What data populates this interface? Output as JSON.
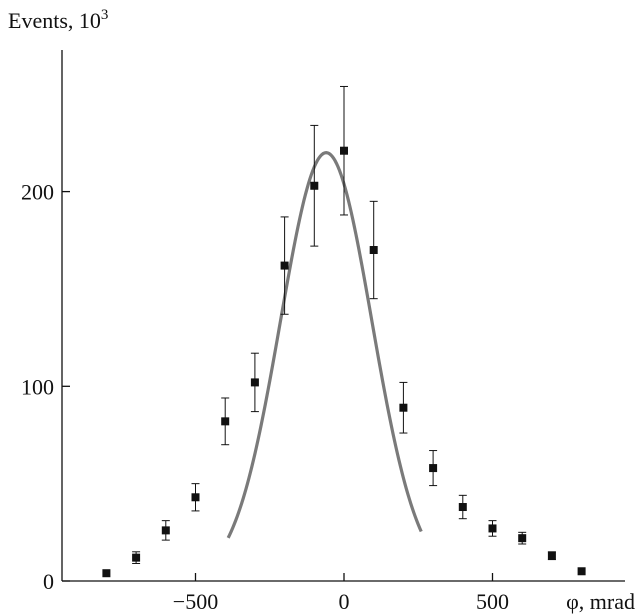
{
  "chart_data": {
    "type": "scatter",
    "ylabel": "Events, 10",
    "ylabel_superscript": "3",
    "xlabel": "φ, mrad",
    "xlim": [
      -890,
      960
    ],
    "ylim": [
      0,
      283
    ],
    "xticks": [
      -500,
      0,
      500
    ],
    "xtick_labels": [
      "−500",
      "0",
      "500"
    ],
    "yticks": [
      0,
      100,
      200
    ],
    "ytick_labels": [
      "0",
      "100",
      "200"
    ],
    "grid": false,
    "series": [
      {
        "kind": "points_with_error_bars",
        "color": "#111111",
        "points": [
          {
            "x": -800,
            "y": 4,
            "err": 0
          },
          {
            "x": -700,
            "y": 12,
            "err": 3
          },
          {
            "x": -600,
            "y": 26,
            "err": 5
          },
          {
            "x": -500,
            "y": 43,
            "err": 7
          },
          {
            "x": -400,
            "y": 82,
            "err": 12
          },
          {
            "x": -300,
            "y": 102,
            "err": 15
          },
          {
            "x": -200,
            "y": 162,
            "err": 25
          },
          {
            "x": -100,
            "y": 203,
            "err": 31
          },
          {
            "x": 0,
            "y": 221,
            "err": 33
          },
          {
            "x": 100,
            "y": 170,
            "err": 25
          },
          {
            "x": 200,
            "y": 89,
            "err": 13
          },
          {
            "x": 300,
            "y": 58,
            "err": 9
          },
          {
            "x": 400,
            "y": 38,
            "err": 6
          },
          {
            "x": 500,
            "y": 27,
            "err": 4
          },
          {
            "x": 600,
            "y": 22,
            "err": 3
          },
          {
            "x": 700,
            "y": 13,
            "err": 2
          },
          {
            "x": 800,
            "y": 5,
            "err": 0
          }
        ]
      },
      {
        "kind": "gaussian_fit",
        "color": "#7a7a7a",
        "amplitude": 220,
        "mean": -60,
        "sigma": 154,
        "x_range": [
          -390,
          260
        ]
      }
    ]
  }
}
